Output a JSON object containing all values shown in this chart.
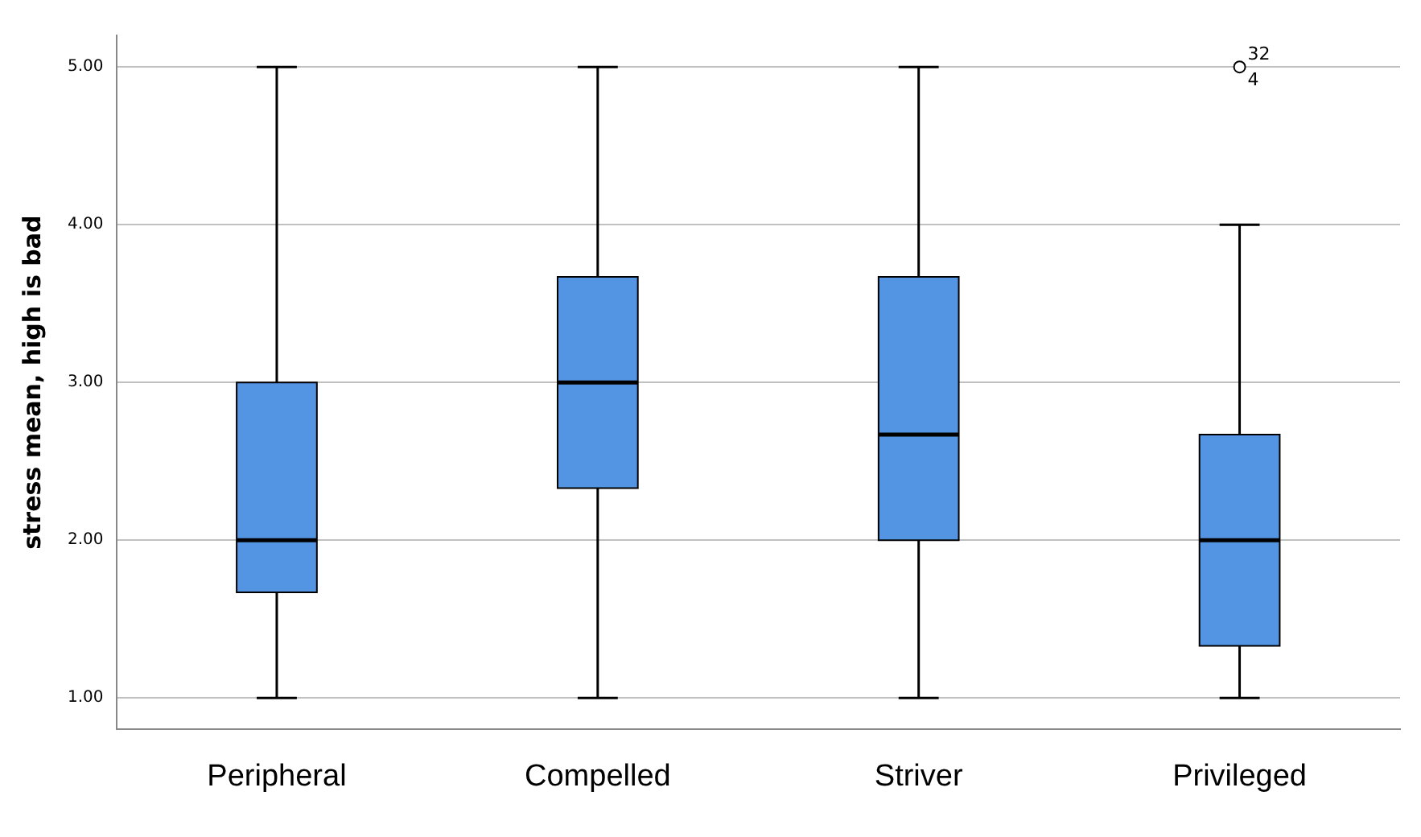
{
  "chart_data": {
    "type": "box",
    "ylabel": "stress mean, high is bad",
    "categories": [
      "Peripheral",
      "Compelled",
      "Striver",
      "Privileged"
    ],
    "color": "#5394e3",
    "boxes": [
      {
        "low": 1,
        "q1": 1.67,
        "median": 2,
        "q3": 3,
        "high": 5
      },
      {
        "low": 1,
        "q1": 2.33,
        "median": 3,
        "q3": 3.67,
        "high": 5
      },
      {
        "low": 1,
        "q1": 2,
        "median": 2.67,
        "q3": 3.67,
        "high": 5
      },
      {
        "low": 1,
        "q1": 1.33,
        "median": 2,
        "q3": 2.67,
        "high": 4,
        "outliers": [
          5
        ]
      }
    ],
    "ylim": [
      0.8,
      5.2
    ],
    "yticks": [
      {
        "value": 1,
        "label": "1.00"
      },
      {
        "value": 2,
        "label": "2.00"
      },
      {
        "value": 3,
        "label": "3.00"
      },
      {
        "value": 4,
        "label": "4.00"
      },
      {
        "value": 5,
        "label": "5.00"
      }
    ],
    "grid": "y",
    "legend": false,
    "marker": "circle",
    "annotations": [
      "32",
      "4"
    ]
  }
}
